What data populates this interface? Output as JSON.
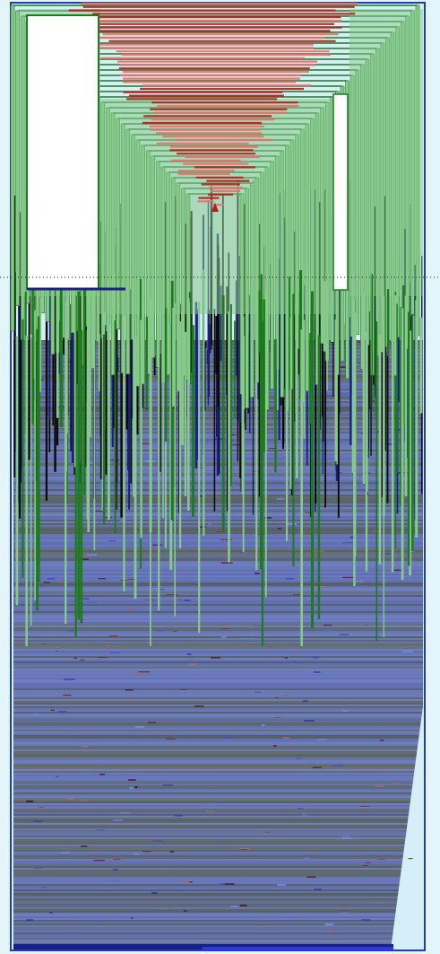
{
  "diagram": {
    "type": "layered-tree-visualization",
    "colors": {
      "background": "#e4f4fb",
      "panel_fill": "#d6eef8",
      "panel_border": "#1f3fb0",
      "node_fill_green": "#86c98b",
      "node_stroke_green": "#1d7a1d",
      "node_fill_red": "#f26b6b",
      "node_stroke_red": "#b71c1c",
      "leaf_blue": "#17208a",
      "leaf_dark": "#0a0a0a",
      "white_block": "#ffffff",
      "guide_line": "#222222"
    },
    "layers": [
      {
        "name": "root-cone",
        "color_role": "red"
      },
      {
        "name": "nested-brackets",
        "color_role": "green"
      },
      {
        "name": "spikes",
        "color_role": "dark"
      },
      {
        "name": "leaf-mass",
        "color_role": "blue"
      }
    ],
    "blocks": [
      {
        "name": "left-white-block"
      },
      {
        "name": "right-white-block"
      }
    ],
    "guide": {
      "style": "dotted",
      "orientation": "horizontal"
    }
  }
}
